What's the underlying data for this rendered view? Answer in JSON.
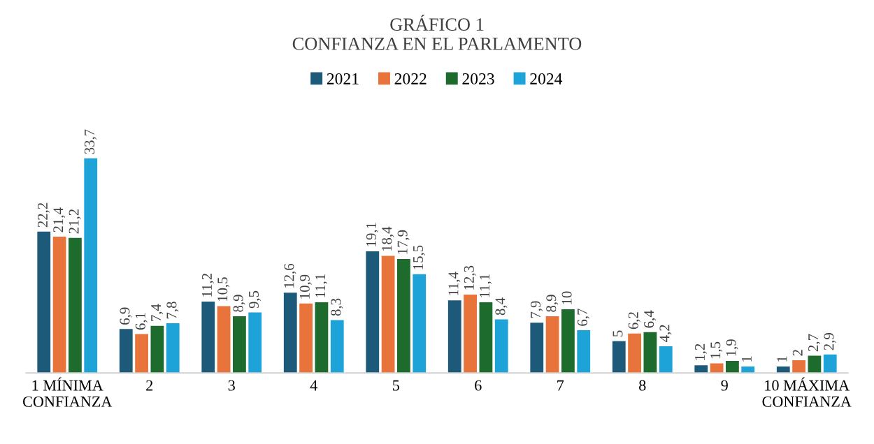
{
  "chart_data": {
    "type": "bar",
    "title": "GRÁFICO 1\nCONFIANZA EN EL PARLAMENTO",
    "categories": [
      "1 MÍNIMA CONFIANZA",
      "2",
      "3",
      "4",
      "5",
      "6",
      "7",
      "8",
      "9",
      "10 MÁXIMA CONFIANZA"
    ],
    "legend": "top",
    "grid": false,
    "tick_labels": "x",
    "series": [
      {
        "name": "2021",
        "color": "#1d5a7a",
        "values": [
          22.2,
          6.9,
          11.2,
          12.6,
          19.1,
          11.4,
          7.9,
          5,
          1.2,
          1
        ],
        "value_labels": [
          "22,2",
          "6,9",
          "11,2",
          "12,6",
          "19,1",
          "11,4",
          "7,9",
          "5",
          "1,2",
          "1"
        ]
      },
      {
        "name": "2022",
        "color": "#e8743b",
        "values": [
          21.4,
          6.1,
          10.5,
          10.9,
          18.4,
          12.3,
          8.9,
          6.2,
          1.5,
          2
        ],
        "value_labels": [
          "21,4",
          "6,1",
          "10,5",
          "10,9",
          "18,4",
          "12,3",
          "8,9",
          "6,2",
          "1,5",
          "2"
        ]
      },
      {
        "name": "2023",
        "color": "#1e6b2e",
        "values": [
          21.2,
          7.4,
          8.9,
          11.1,
          17.9,
          11.1,
          10,
          6.4,
          1.9,
          2.7
        ],
        "value_labels": [
          "21,2",
          "7,4",
          "8,9",
          "11,1",
          "17,9",
          "11,1",
          "10",
          "6,4",
          "1,9",
          "2,7"
        ]
      },
      {
        "name": "2024",
        "color": "#1ea3d8",
        "values": [
          33.7,
          7.8,
          9.5,
          8.3,
          15.5,
          8.4,
          6.7,
          4.2,
          1,
          2.9
        ],
        "value_labels": [
          "33,7",
          "7,8",
          "9,5",
          "8,3",
          "15,5",
          "8,4",
          "6,7",
          "4,2",
          "1",
          "2,9"
        ]
      }
    ]
  }
}
